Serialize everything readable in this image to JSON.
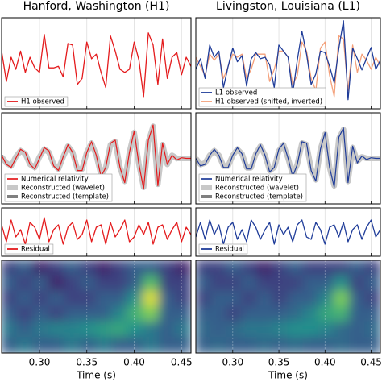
{
  "chart_data": [
    {
      "type": "line",
      "title": "Hanford, Washington (H1)",
      "xlim": [
        0.26,
        0.46
      ],
      "ylim": [
        -1.5,
        1.5
      ],
      "x": [
        0.26,
        0.265,
        0.27,
        0.275,
        0.28,
        0.285,
        0.29,
        0.295,
        0.3,
        0.305,
        0.31,
        0.315,
        0.32,
        0.325,
        0.33,
        0.335,
        0.34,
        0.345,
        0.35,
        0.355,
        0.36,
        0.365,
        0.37,
        0.375,
        0.38,
        0.385,
        0.39,
        0.395,
        0.4,
        0.405,
        0.41,
        0.415,
        0.42,
        0.425,
        0.43,
        0.435,
        0.44,
        0.445,
        0.45,
        0.455,
        0.46
      ],
      "series": [
        {
          "name": "H1 observed",
          "color": "#e41a1c",
          "linewidth": 1.3,
          "values": [
            0.4,
            -0.6,
            0.2,
            -0.2,
            0.4,
            -0.3,
            0.2,
            -0.15,
            -0.3,
            0.95,
            -0.15,
            -0.15,
            -0.1,
            -0.45,
            0.65,
            0.6,
            -0.7,
            -0.5,
            0.7,
            0.15,
            0.3,
            -0.3,
            -0.8,
            0.9,
            0.4,
            -0.2,
            -0.3,
            -0.2,
            0.7,
            0.1,
            -1.1,
            1.0,
            0.6,
            -0.7,
            0.8,
            -0.5,
            0.2,
            0.35,
            -0.38,
            0.2,
            -0.1
          ]
        }
      ]
    },
    {
      "type": "line",
      "title": "Livingston, Louisiana (L1)",
      "xlim": [
        0.26,
        0.46
      ],
      "ylim": [
        -1.5,
        1.5
      ],
      "x": [
        0.26,
        0.265,
        0.27,
        0.275,
        0.28,
        0.285,
        0.29,
        0.295,
        0.3,
        0.305,
        0.31,
        0.315,
        0.32,
        0.325,
        0.33,
        0.335,
        0.34,
        0.345,
        0.35,
        0.355,
        0.36,
        0.365,
        0.37,
        0.375,
        0.38,
        0.385,
        0.39,
        0.395,
        0.4,
        0.405,
        0.41,
        0.415,
        0.42,
        0.425,
        0.43,
        0.435,
        0.44,
        0.445,
        0.45,
        0.455,
        0.46
      ],
      "series": [
        {
          "name": "L1 observed",
          "color": "#1f3c99",
          "linewidth": 1.3,
          "values": [
            -0.2,
            0.15,
            -0.5,
            0.6,
            0.2,
            0.4,
            -0.8,
            -0.1,
            0.5,
            0.05,
            0.25,
            -0.75,
            0.15,
            0.35,
            0.15,
            0.2,
            -0.05,
            -0.8,
            0.6,
            0.4,
            0.2,
            -1.0,
            0.1,
            1.05,
            0.3,
            -0.7,
            -0.35,
            0.4,
            0.35,
            -0.1,
            -0.65,
            0.5,
            1.4,
            -1.2,
            0.5,
            0.15,
            -0.22,
            0.16,
            0.52,
            -0.2,
            0.1
          ]
        },
        {
          "name": "H1 observed (shifted, inverted)",
          "color": "#f4a07a",
          "linewidth": 1.3,
          "values": [
            0.2,
            -0.1,
            -0.4,
            0.3,
            0.1,
            0.3,
            -0.5,
            -0.1,
            0.3,
            0.2,
            0.3,
            -0.5,
            -0.2,
            0.3,
            0.3,
            0.3,
            -0.6,
            -0.2,
            0.4,
            0.4,
            0.2,
            -0.7,
            -0.4,
            0.7,
            0.4,
            -0.5,
            -0.9,
            0.5,
            0.7,
            -0.4,
            -1.1,
            0.9,
            0.8,
            -0.9,
            0.6,
            -0.3,
            0.3,
            0.1,
            -0.2,
            0.2,
            -0.1
          ]
        }
      ]
    },
    {
      "type": "line",
      "xlim": [
        0.26,
        0.46
      ],
      "ylim": [
        -1.5,
        1.5
      ],
      "x": [
        0.26,
        0.265,
        0.27,
        0.275,
        0.28,
        0.285,
        0.29,
        0.295,
        0.3,
        0.305,
        0.31,
        0.315,
        0.32,
        0.325,
        0.33,
        0.335,
        0.34,
        0.345,
        0.35,
        0.355,
        0.36,
        0.365,
        0.37,
        0.375,
        0.38,
        0.385,
        0.39,
        0.395,
        0.4,
        0.405,
        0.41,
        0.415,
        0.42,
        0.425,
        0.43,
        0.435,
        0.44,
        0.445,
        0.45,
        0.455,
        0.46
      ],
      "series": [
        {
          "name": "Numerical relativity",
          "color": "#e41a1c",
          "linewidth": 1.2,
          "values": [
            0.1,
            -0.2,
            -0.3,
            0,
            0.3,
            0.2,
            -0.2,
            -0.35,
            0,
            0.35,
            0.25,
            -0.25,
            -0.4,
            0.05,
            0.45,
            0.2,
            -0.4,
            -0.4,
            0.2,
            0.55,
            0.1,
            -0.6,
            -0.3,
            0.5,
            0.6,
            -0.3,
            -0.8,
            0.2,
            0.9,
            -0.2,
            -1.0,
            0.6,
            1.1,
            -0.9,
            0.5,
            -0.2,
            0.1,
            -0.05,
            0.02,
            0,
            0
          ]
        },
        {
          "name": "Reconstructed (wavelet)",
          "color": "#c8c8c8",
          "linewidth": 7,
          "values": [
            0.05,
            -0.15,
            -0.25,
            0.05,
            0.25,
            0.15,
            -0.2,
            -0.3,
            0.05,
            0.3,
            0.2,
            -0.2,
            -0.35,
            0.05,
            0.4,
            0.2,
            -0.35,
            -0.35,
            0.2,
            0.5,
            0.1,
            -0.55,
            -0.3,
            0.45,
            0.55,
            -0.3,
            -0.75,
            0.2,
            0.85,
            -0.2,
            -0.95,
            0.55,
            1.05,
            -0.85,
            0.45,
            -0.2,
            0.1,
            0,
            0,
            0,
            0
          ]
        },
        {
          "name": "Reconstructed (template)",
          "color": "#808080",
          "linewidth": 3.5,
          "values": [
            0.1,
            -0.2,
            -0.3,
            0,
            0.3,
            0.2,
            -0.2,
            -0.35,
            0,
            0.35,
            0.25,
            -0.25,
            -0.4,
            0.05,
            0.45,
            0.2,
            -0.4,
            -0.4,
            0.2,
            0.55,
            0.1,
            -0.6,
            -0.3,
            0.5,
            0.6,
            -0.3,
            -0.8,
            0.2,
            0.9,
            -0.2,
            -1.0,
            0.6,
            1.1,
            -0.9,
            0.5,
            -0.2,
            0.1,
            -0.05,
            0.02,
            0,
            0
          ]
        }
      ]
    },
    {
      "type": "line",
      "xlim": [
        0.26,
        0.46
      ],
      "ylim": [
        -1.5,
        1.5
      ],
      "x": [
        0.26,
        0.265,
        0.27,
        0.275,
        0.28,
        0.285,
        0.29,
        0.295,
        0.3,
        0.305,
        0.31,
        0.315,
        0.32,
        0.325,
        0.33,
        0.335,
        0.34,
        0.345,
        0.35,
        0.355,
        0.36,
        0.365,
        0.37,
        0.375,
        0.38,
        0.385,
        0.39,
        0.395,
        0.4,
        0.405,
        0.41,
        0.415,
        0.42,
        0.425,
        0.43,
        0.435,
        0.44,
        0.445,
        0.45,
        0.455,
        0.46
      ],
      "series": [
        {
          "name": "Numerical relativity",
          "color": "#1f3c99",
          "linewidth": 1.2,
          "values": [
            0,
            -0.25,
            -0.2,
            0.1,
            0.3,
            0.1,
            -0.3,
            -0.3,
            0.1,
            0.35,
            0.15,
            -0.35,
            -0.35,
            0.15,
            0.45,
            0.1,
            -0.45,
            -0.3,
            0.3,
            0.5,
            0,
            -0.6,
            -0.2,
            0.55,
            0.5,
            -0.4,
            -0.75,
            0.3,
            0.85,
            -0.3,
            -0.95,
            0.7,
            1.0,
            -0.8,
            0.4,
            -0.15,
            0.08,
            -0.04,
            0.02,
            0,
            0
          ]
        },
        {
          "name": "Reconstructed (wavelet)",
          "color": "#c8c8c8",
          "linewidth": 7,
          "values": [
            0,
            -0.2,
            -0.15,
            0.1,
            0.25,
            0.1,
            -0.25,
            -0.25,
            0.1,
            0.3,
            0.15,
            -0.3,
            -0.3,
            0.15,
            0.4,
            0.1,
            -0.4,
            -0.3,
            0.25,
            0.45,
            0,
            -0.55,
            -0.2,
            0.5,
            0.45,
            -0.35,
            -0.7,
            0.3,
            0.8,
            -0.3,
            -0.9,
            0.65,
            0.95,
            -0.75,
            0.35,
            -0.1,
            0.05,
            0,
            0,
            0,
            0
          ]
        },
        {
          "name": "Reconstructed (template)",
          "color": "#808080",
          "linewidth": 3.5,
          "values": [
            0,
            -0.25,
            -0.2,
            0.1,
            0.3,
            0.1,
            -0.3,
            -0.3,
            0.1,
            0.35,
            0.15,
            -0.35,
            -0.35,
            0.15,
            0.45,
            0.1,
            -0.45,
            -0.3,
            0.3,
            0.5,
            0,
            -0.6,
            -0.2,
            0.55,
            0.5,
            -0.4,
            -0.75,
            0.3,
            0.85,
            -0.3,
            -0.95,
            0.7,
            1.0,
            -0.8,
            0.4,
            -0.15,
            0.08,
            -0.04,
            0.02,
            0,
            0
          ]
        }
      ]
    },
    {
      "type": "line",
      "xlim": [
        0.26,
        0.46
      ],
      "ylim": [
        -1,
        1
      ],
      "x": [
        0.26,
        0.265,
        0.27,
        0.275,
        0.28,
        0.285,
        0.29,
        0.295,
        0.3,
        0.305,
        0.31,
        0.315,
        0.32,
        0.325,
        0.33,
        0.335,
        0.34,
        0.345,
        0.35,
        0.355,
        0.36,
        0.365,
        0.37,
        0.375,
        0.38,
        0.385,
        0.39,
        0.395,
        0.4,
        0.405,
        0.41,
        0.415,
        0.42,
        0.425,
        0.43,
        0.435,
        0.44,
        0.445,
        0.45,
        0.455,
        0.46
      ],
      "series": [
        {
          "name": "Residual",
          "color": "#e41a1c",
          "linewidth": 1.3,
          "values": [
            0.3,
            -0.4,
            0.5,
            -0.2,
            0.1,
            -0.5,
            0.4,
            0.2,
            -0.3,
            0.6,
            -0.4,
            0.1,
            0.3,
            -0.5,
            0.2,
            0.4,
            -0.3,
            -0.1,
            0.5,
            -0.4,
            0.2,
            0.3,
            -0.5,
            0.4,
            -0.2,
            0.1,
            0.5,
            -0.4,
            -0.2,
            0.3,
            -0.1,
            0.4,
            -0.5,
            0.2,
            0.3,
            -0.3,
            0.1,
            0.4,
            -0.4,
            0.2,
            -0.1
          ]
        }
      ]
    },
    {
      "type": "line",
      "xlim": [
        0.26,
        0.46
      ],
      "ylim": [
        -1,
        1
      ],
      "x": [
        0.26,
        0.265,
        0.27,
        0.275,
        0.28,
        0.285,
        0.29,
        0.295,
        0.3,
        0.305,
        0.31,
        0.315,
        0.32,
        0.325,
        0.33,
        0.335,
        0.34,
        0.345,
        0.35,
        0.355,
        0.36,
        0.365,
        0.37,
        0.375,
        0.38,
        0.385,
        0.39,
        0.395,
        0.4,
        0.405,
        0.41,
        0.415,
        0.42,
        0.425,
        0.43,
        0.435,
        0.44,
        0.445,
        0.45,
        0.455,
        0.46
      ],
      "series": [
        {
          "name": "Residual",
          "color": "#1f3c99",
          "linewidth": 1.3,
          "values": [
            -0.2,
            0.4,
            -0.3,
            0.5,
            -0.1,
            0.3,
            -0.5,
            0.2,
            0.4,
            -0.3,
            0.1,
            -0.4,
            0.5,
            0.2,
            -0.3,
            0.1,
            0.4,
            -0.5,
            0.3,
            -0.1,
            0.2,
            -0.4,
            0.3,
            0.5,
            -0.2,
            -0.3,
            0.4,
            0.1,
            -0.5,
            0.2,
            0.3,
            -0.2,
            0.4,
            -0.4,
            0.1,
            0.3,
            -0.3,
            0.2,
            0.5,
            -0.2,
            0.1
          ]
        }
      ]
    },
    {
      "type": "heatmap",
      "colormap": "viridis",
      "xlabel": "Time (s)",
      "xlim": [
        0.26,
        0.46
      ],
      "xticks": [
        {
          "value": 0.3,
          "label": "0.30"
        },
        {
          "value": 0.35,
          "label": "0.35"
        },
        {
          "value": 0.4,
          "label": "0.40"
        },
        {
          "value": 0.45,
          "label": "0.45"
        }
      ],
      "z": [
        [
          0.2,
          0.3,
          0.1,
          0.2,
          0.3,
          0.2,
          0.1,
          0.2,
          0.3,
          0.3,
          0.2,
          0.1
        ],
        [
          0.3,
          0.2,
          0.3,
          0.1,
          0.2,
          0.3,
          0.2,
          0.2,
          0.3,
          0.7,
          0.2,
          0.2
        ],
        [
          0.2,
          0.3,
          0.2,
          0.3,
          0.2,
          0.2,
          0.3,
          0.3,
          0.5,
          0.95,
          0.3,
          0.2
        ],
        [
          0.3,
          0.2,
          0.3,
          0.2,
          0.3,
          0.3,
          0.3,
          0.45,
          0.65,
          0.8,
          0.3,
          0.3
        ],
        [
          0.4,
          0.3,
          0.4,
          0.45,
          0.45,
          0.5,
          0.55,
          0.6,
          0.5,
          0.4,
          0.3,
          0.4
        ],
        [
          0.3,
          0.4,
          0.3,
          0.3,
          0.4,
          0.3,
          0.4,
          0.3,
          0.3,
          0.4,
          0.3,
          0.3
        ]
      ]
    },
    {
      "type": "heatmap",
      "colormap": "viridis",
      "xlabel": "Time (s)",
      "xlim": [
        0.26,
        0.46
      ],
      "xticks": [
        {
          "value": 0.3,
          "label": "0.30"
        },
        {
          "value": 0.35,
          "label": "0.35"
        },
        {
          "value": 0.4,
          "label": "0.40"
        },
        {
          "value": 0.45,
          "label": "0.45"
        }
      ],
      "z": [
        [
          0.2,
          0.2,
          0.3,
          0.2,
          0.1,
          0.2,
          0.3,
          0.2,
          0.2,
          0.2,
          0.3,
          0.2
        ],
        [
          0.3,
          0.2,
          0.2,
          0.3,
          0.2,
          0.2,
          0.2,
          0.3,
          0.3,
          0.5,
          0.2,
          0.3
        ],
        [
          0.2,
          0.3,
          0.3,
          0.2,
          0.3,
          0.2,
          0.3,
          0.3,
          0.45,
          0.8,
          0.3,
          0.2
        ],
        [
          0.3,
          0.3,
          0.2,
          0.3,
          0.3,
          0.3,
          0.35,
          0.45,
          0.6,
          0.65,
          0.3,
          0.3
        ],
        [
          0.35,
          0.3,
          0.35,
          0.4,
          0.4,
          0.45,
          0.5,
          0.5,
          0.45,
          0.35,
          0.3,
          0.35
        ],
        [
          0.3,
          0.35,
          0.3,
          0.3,
          0.35,
          0.3,
          0.35,
          0.3,
          0.3,
          0.35,
          0.3,
          0.3
        ]
      ]
    }
  ]
}
